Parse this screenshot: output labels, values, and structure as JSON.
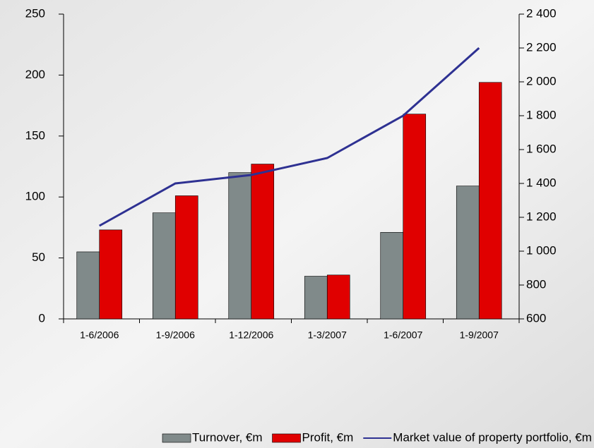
{
  "chart_data": {
    "type": "bar",
    "categories": [
      "1-6/2006",
      "1-9/2006",
      "1-12/2006",
      "1-3/2007",
      "1-6/2007",
      "1-9/2007"
    ],
    "series": [
      {
        "name": "Turnover, €m",
        "color": "#808a8a",
        "values": [
          55,
          87,
          120,
          35,
          71,
          109
        ]
      },
      {
        "name": "Profit, €m",
        "color": "#e00000",
        "values": [
          73,
          101,
          127,
          36,
          168,
          194
        ]
      },
      {
        "name": "Market value of property portfolio, €m",
        "color": "#2e3192",
        "type": "line",
        "axis": "y2",
        "values": [
          1150,
          1400,
          1450,
          1550,
          1800,
          2200
        ]
      }
    ],
    "ylim": [
      0,
      250
    ],
    "yticks": [
      0,
      50,
      100,
      150,
      200,
      250
    ],
    "y2lim": [
      600,
      2400
    ],
    "y2ticks": [
      600,
      800,
      {
        "value": 1000,
        "label": "1 000"
      },
      {
        "value": 1200,
        "label": "1 200"
      },
      {
        "value": 1400,
        "label": "1 400"
      },
      {
        "value": 1600,
        "label": "1 600"
      },
      {
        "value": 1800,
        "label": "1 800"
      },
      {
        "value": 2000,
        "label": "2 000"
      },
      {
        "value": 2200,
        "label": "2 200"
      },
      {
        "value": 2400,
        "label": "2 400"
      }
    ],
    "legend": "bottom"
  }
}
